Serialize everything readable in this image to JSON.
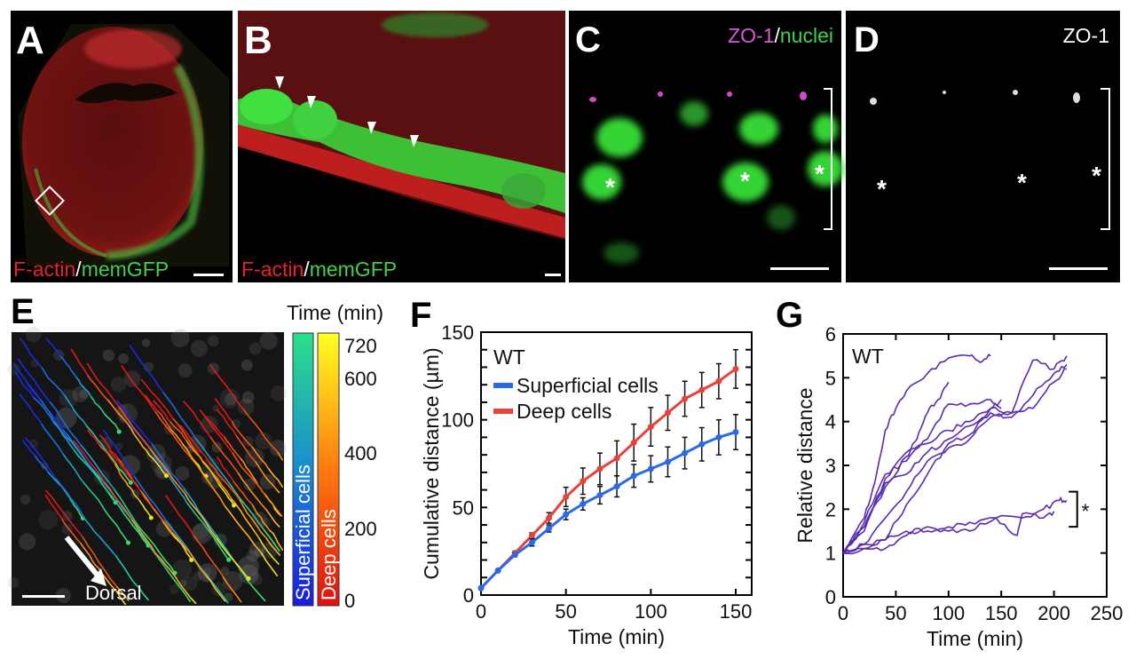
{
  "panels": {
    "A": {
      "label": "A",
      "caption_red": "F-actin",
      "caption_sep": "/",
      "caption_green": "memGFP"
    },
    "B": {
      "label": "B",
      "caption_red": "F-actin",
      "caption_sep": "/",
      "caption_green": "memGFP"
    },
    "C": {
      "label": "C",
      "caption_magenta": "ZO-1",
      "caption_sep": "/",
      "caption_green": "nuclei",
      "asterisk": "*"
    },
    "D": {
      "label": "D",
      "caption": "ZO-1",
      "asterisk": "*"
    },
    "E": {
      "label": "E",
      "colorbar_title": "Time (min)",
      "colorbar_ticks": [
        "720",
        "600",
        "400",
        "200",
        "0"
      ],
      "colorbar_superficial": "Superficial cells",
      "colorbar_deep": "Deep cells",
      "arrow_label": "Dorsal"
    },
    "F": {
      "label": "F"
    },
    "G": {
      "label": "G"
    }
  },
  "colors": {
    "red": "#e8202a",
    "green": "#3fd24a",
    "magenta": "#d65cd6",
    "superficial": "#2a6ae8",
    "deep": "#e8423a",
    "tracks_g": "#5a2ab4"
  },
  "chart_data": [
    {
      "panel": "F",
      "type": "line",
      "annotation": "WT",
      "xlabel": "Time (min)",
      "ylabel": "Cumulative distance (µm)",
      "xlim": [
        0,
        150
      ],
      "ylim": [
        0,
        150
      ],
      "xticks": [
        "0",
        "50",
        "100",
        "150"
      ],
      "yticks": [
        "0",
        "50",
        "100",
        "150"
      ],
      "legend_placement": "top-left",
      "x": [
        0,
        10,
        20,
        30,
        40,
        50,
        60,
        70,
        80,
        90,
        100,
        110,
        120,
        130,
        140,
        150
      ],
      "series": [
        {
          "name": "Superficial cells",
          "color": "#2a6ae8",
          "values": [
            4,
            14,
            23,
            30,
            38,
            46,
            52,
            57,
            62,
            68,
            72,
            76,
            81,
            86,
            90,
            93
          ],
          "error": [
            0,
            0.5,
            1,
            2,
            2,
            3,
            3.5,
            5,
            6,
            6.5,
            7.5,
            8.5,
            9,
            9.5,
            10,
            10
          ]
        },
        {
          "name": "Deep cells",
          "color": "#e8423a",
          "values": [
            4,
            14,
            24,
            34,
            44,
            56,
            65,
            72,
            78,
            87,
            96,
            104,
            112,
            117,
            122,
            129
          ],
          "error": [
            0,
            0.5,
            1,
            1.5,
            3,
            5.5,
            7.5,
            9,
            10,
            10.5,
            11,
            10,
            10,
            10,
            10,
            11
          ]
        }
      ]
    },
    {
      "panel": "G",
      "type": "line",
      "annotation": "WT",
      "xlabel": "Time (min)",
      "ylabel": "Relative distance",
      "xlim": [
        0,
        250
      ],
      "ylim": [
        0,
        6
      ],
      "xticks": [
        "0",
        "50",
        "100",
        "150",
        "200",
        "250"
      ],
      "yticks": [
        "0",
        "1",
        "2",
        "3",
        "4",
        "5",
        "6"
      ],
      "bracket_label": "*",
      "bracket_range": [
        1.6,
        2.4
      ],
      "series": [
        {
          "points": [
            [
              0,
              1
            ],
            [
              20,
              1.8
            ],
            [
              30,
              2.6
            ],
            [
              40,
              3.8
            ],
            [
              50,
              4.3
            ],
            [
              60,
              4.7
            ],
            [
              80,
              5.1
            ],
            [
              100,
              5.45
            ],
            [
              120,
              5.5
            ],
            [
              130,
              5.35
            ],
            [
              140,
              5.5
            ]
          ]
        },
        {
          "points": [
            [
              0,
              1
            ],
            [
              20,
              1.6
            ],
            [
              40,
              2.5
            ],
            [
              60,
              3.2
            ],
            [
              70,
              3.6
            ],
            [
              80,
              4.2
            ],
            [
              90,
              4.5
            ],
            [
              100,
              4.9
            ]
          ]
        },
        {
          "points": [
            [
              0,
              1
            ],
            [
              20,
              1.7
            ],
            [
              40,
              2.8
            ],
            [
              60,
              3.1
            ],
            [
              80,
              3.6
            ],
            [
              100,
              4.4
            ],
            [
              120,
              4.4
            ],
            [
              140,
              4.5
            ],
            [
              150,
              4.3
            ]
          ]
        },
        {
          "points": [
            [
              0,
              1
            ],
            [
              20,
              1.5
            ],
            [
              40,
              2.7
            ],
            [
              60,
              3.3
            ],
            [
              80,
              3.5
            ],
            [
              100,
              3.8
            ],
            [
              120,
              4.0
            ],
            [
              140,
              4.3
            ],
            [
              160,
              4.2
            ],
            [
              180,
              5.4
            ],
            [
              200,
              5.2
            ],
            [
              212,
              5.5
            ]
          ]
        },
        {
          "points": [
            [
              0,
              1
            ],
            [
              20,
              1.6
            ],
            [
              40,
              2.6
            ],
            [
              60,
              2.8
            ],
            [
              80,
              3.3
            ],
            [
              100,
              3.6
            ],
            [
              120,
              3.9
            ],
            [
              140,
              4.2
            ],
            [
              160,
              4.1
            ],
            [
              180,
              4.6
            ],
            [
              200,
              5.1
            ],
            [
              212,
              5.3
            ]
          ]
        },
        {
          "points": [
            [
              0,
              1
            ],
            [
              20,
              1.2
            ],
            [
              40,
              1.8
            ],
            [
              60,
              2.4
            ],
            [
              80,
              3.1
            ],
            [
              100,
              3.4
            ],
            [
              120,
              3.6
            ],
            [
              140,
              4.1
            ],
            [
              160,
              4.2
            ],
            [
              180,
              4.3
            ],
            [
              200,
              4.9
            ],
            [
              212,
              5.2
            ]
          ]
        },
        {
          "points": [
            [
              0,
              1
            ],
            [
              20,
              1.1
            ],
            [
              40,
              1.3
            ],
            [
              60,
              2.1
            ],
            [
              80,
              2.8
            ],
            [
              100,
              3.5
            ],
            [
              120,
              3.7
            ],
            [
              140,
              4.3
            ],
            [
              150,
              4.5
            ]
          ]
        },
        {
          "points": [
            [
              0,
              1
            ],
            [
              20,
              1.2
            ],
            [
              40,
              1.3
            ],
            [
              60,
              1.5
            ],
            [
              80,
              1.5
            ],
            [
              100,
              1.6
            ],
            [
              120,
              1.7
            ],
            [
              145,
              1.8
            ],
            [
              165,
              1.4
            ],
            [
              170,
              1.9
            ],
            [
              190,
              1.8
            ],
            [
              200,
              1.95
            ]
          ]
        },
        {
          "points": [
            [
              0,
              1
            ],
            [
              20,
              1.1
            ],
            [
              40,
              1.1
            ],
            [
              60,
              1.4
            ],
            [
              80,
              1.6
            ],
            [
              100,
              1.5
            ],
            [
              120,
              1.5
            ],
            [
              145,
              1.8
            ],
            [
              170,
              1.8
            ],
            [
              190,
              2.0
            ],
            [
              205,
              2.2
            ],
            [
              212,
              2.2
            ]
          ]
        }
      ]
    }
  ]
}
